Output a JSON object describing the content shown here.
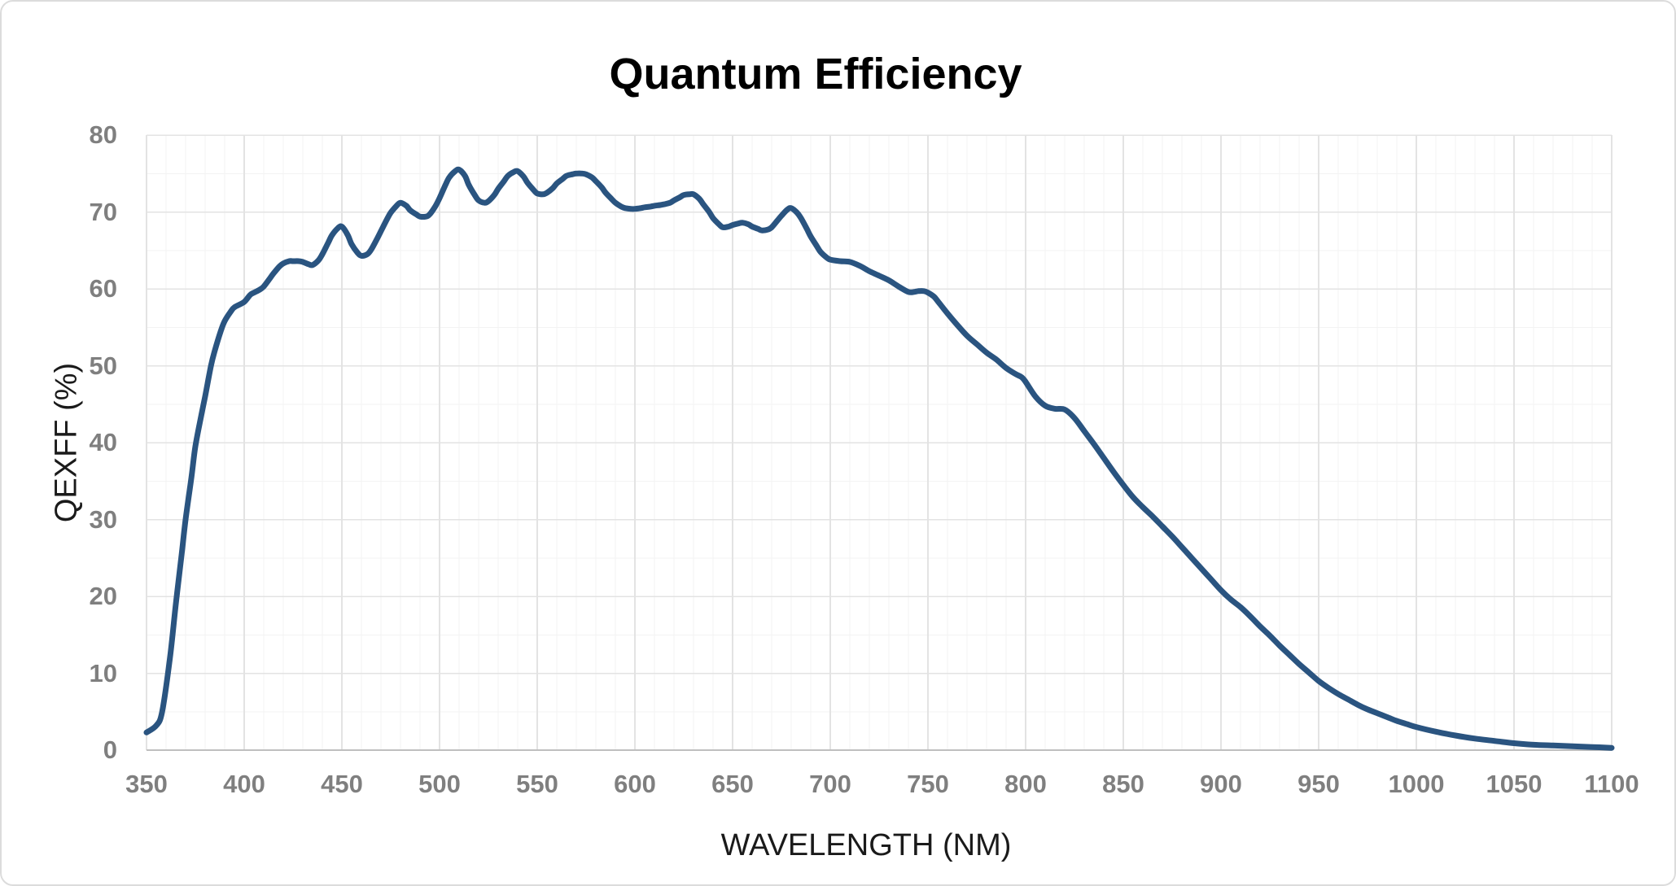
{
  "chart_data": {
    "type": "line",
    "title": "Quantum Efficiency",
    "xlabel": "WAVELENGTH (NM)",
    "ylabel": "QEXFF (%)",
    "xlim": [
      350,
      1100
    ],
    "ylim": [
      0,
      80
    ],
    "x_ticks": [
      350,
      400,
      450,
      500,
      550,
      600,
      650,
      700,
      750,
      800,
      850,
      900,
      950,
      1000,
      1050,
      1100
    ],
    "y_ticks": [
      0,
      10,
      20,
      30,
      40,
      50,
      60,
      70,
      80
    ],
    "x_minor_step": 10,
    "y_minor_step": 5,
    "grid": true,
    "legend": "none",
    "series": [
      {
        "name": "QExFF",
        "color": "#2a5480",
        "points": [
          [
            350,
            2.3
          ],
          [
            355,
            3.2
          ],
          [
            358,
            5
          ],
          [
            362,
            12
          ],
          [
            365,
            19
          ],
          [
            368,
            25.5
          ],
          [
            370,
            30
          ],
          [
            373,
            35.5
          ],
          [
            375,
            39.5
          ],
          [
            378,
            43.5
          ],
          [
            380,
            46
          ],
          [
            383,
            50
          ],
          [
            385,
            52
          ],
          [
            388,
            54.5
          ],
          [
            390,
            55.8
          ],
          [
            393,
            57
          ],
          [
            395,
            57.6
          ],
          [
            400,
            58.3
          ],
          [
            403,
            59.2
          ],
          [
            405,
            59.5
          ],
          [
            408,
            59.9
          ],
          [
            410,
            60.3
          ],
          [
            413,
            61.3
          ],
          [
            415,
            62
          ],
          [
            418,
            62.9
          ],
          [
            420,
            63.3
          ],
          [
            423,
            63.6
          ],
          [
            425,
            63.6
          ],
          [
            428,
            63.6
          ],
          [
            430,
            63.5
          ],
          [
            433,
            63.2
          ],
          [
            435,
            63.1
          ],
          [
            438,
            63.7
          ],
          [
            440,
            64.5
          ],
          [
            443,
            66
          ],
          [
            445,
            67
          ],
          [
            448,
            67.9
          ],
          [
            450,
            68.1
          ],
          [
            453,
            67
          ],
          [
            455,
            65.8
          ],
          [
            458,
            64.7
          ],
          [
            460,
            64.3
          ],
          [
            463,
            64.5
          ],
          [
            465,
            65.1
          ],
          [
            468,
            66.5
          ],
          [
            470,
            67.5
          ],
          [
            473,
            69
          ],
          [
            475,
            69.9
          ],
          [
            478,
            70.8
          ],
          [
            480,
            71.2
          ],
          [
            483,
            70.8
          ],
          [
            485,
            70.2
          ],
          [
            488,
            69.7
          ],
          [
            490,
            69.4
          ],
          [
            493,
            69.4
          ],
          [
            495,
            69.7
          ],
          [
            498,
            70.8
          ],
          [
            500,
            71.8
          ],
          [
            503,
            73.5
          ],
          [
            505,
            74.5
          ],
          [
            508,
            75.3
          ],
          [
            510,
            75.5
          ],
          [
            513,
            74.7
          ],
          [
            515,
            73.5
          ],
          [
            518,
            72.2
          ],
          [
            520,
            71.5
          ],
          [
            523,
            71.2
          ],
          [
            525,
            71.4
          ],
          [
            528,
            72.2
          ],
          [
            530,
            73
          ],
          [
            533,
            74
          ],
          [
            535,
            74.7
          ],
          [
            538,
            75.2
          ],
          [
            540,
            75.3
          ],
          [
            543,
            74.6
          ],
          [
            545,
            73.8
          ],
          [
            548,
            72.9
          ],
          [
            550,
            72.4
          ],
          [
            553,
            72.3
          ],
          [
            555,
            72.5
          ],
          [
            558,
            73.1
          ],
          [
            560,
            73.7
          ],
          [
            563,
            74.3
          ],
          [
            565,
            74.7
          ],
          [
            568,
            74.9
          ],
          [
            570,
            75
          ],
          [
            573,
            75
          ],
          [
            575,
            74.9
          ],
          [
            578,
            74.5
          ],
          [
            580,
            74
          ],
          [
            583,
            73.2
          ],
          [
            585,
            72.5
          ],
          [
            588,
            71.7
          ],
          [
            590,
            71.2
          ],
          [
            593,
            70.7
          ],
          [
            595,
            70.5
          ],
          [
            598,
            70.4
          ],
          [
            600,
            70.4
          ],
          [
            603,
            70.5
          ],
          [
            605,
            70.6
          ],
          [
            608,
            70.7
          ],
          [
            610,
            70.8
          ],
          [
            613,
            70.9
          ],
          [
            615,
            71
          ],
          [
            618,
            71.2
          ],
          [
            620,
            71.5
          ],
          [
            623,
            71.9
          ],
          [
            625,
            72.2
          ],
          [
            628,
            72.3
          ],
          [
            630,
            72.3
          ],
          [
            633,
            71.7
          ],
          [
            635,
            71
          ],
          [
            638,
            70
          ],
          [
            640,
            69.2
          ],
          [
            643,
            68.4
          ],
          [
            645,
            68
          ],
          [
            648,
            68.1
          ],
          [
            650,
            68.3
          ],
          [
            653,
            68.5
          ],
          [
            655,
            68.6
          ],
          [
            658,
            68.4
          ],
          [
            660,
            68.1
          ],
          [
            663,
            67.8
          ],
          [
            665,
            67.6
          ],
          [
            668,
            67.7
          ],
          [
            670,
            68
          ],
          [
            673,
            68.9
          ],
          [
            675,
            69.5
          ],
          [
            678,
            70.3
          ],
          [
            680,
            70.5
          ],
          [
            683,
            69.9
          ],
          [
            685,
            69.2
          ],
          [
            688,
            67.8
          ],
          [
            690,
            66.8
          ],
          [
            693,
            65.6
          ],
          [
            695,
            64.8
          ],
          [
            698,
            64.1
          ],
          [
            700,
            63.8
          ],
          [
            705,
            63.6
          ],
          [
            710,
            63.5
          ],
          [
            715,
            63
          ],
          [
            720,
            62.3
          ],
          [
            725,
            61.7
          ],
          [
            730,
            61.1
          ],
          [
            735,
            60.3
          ],
          [
            740,
            59.6
          ],
          [
            743,
            59.6
          ],
          [
            745,
            59.7
          ],
          [
            748,
            59.7
          ],
          [
            750,
            59.5
          ],
          [
            753,
            59
          ],
          [
            755,
            58.4
          ],
          [
            760,
            56.8
          ],
          [
            765,
            55.3
          ],
          [
            770,
            53.9
          ],
          [
            775,
            52.8
          ],
          [
            780,
            51.7
          ],
          [
            785,
            50.8
          ],
          [
            790,
            49.7
          ],
          [
            795,
            48.9
          ],
          [
            798,
            48.5
          ],
          [
            800,
            47.9
          ],
          [
            805,
            46
          ],
          [
            810,
            44.8
          ],
          [
            815,
            44.4
          ],
          [
            820,
            44.3
          ],
          [
            825,
            43.2
          ],
          [
            830,
            41.5
          ],
          [
            835,
            39.8
          ],
          [
            840,
            38
          ],
          [
            845,
            36.2
          ],
          [
            850,
            34.5
          ],
          [
            855,
            32.9
          ],
          [
            860,
            31.6
          ],
          [
            865,
            30.4
          ],
          [
            870,
            29.1
          ],
          [
            875,
            27.8
          ],
          [
            880,
            26.4
          ],
          [
            885,
            25
          ],
          [
            890,
            23.6
          ],
          [
            895,
            22.2
          ],
          [
            900,
            20.8
          ],
          [
            905,
            19.6
          ],
          [
            910,
            18.6
          ],
          [
            915,
            17.4
          ],
          [
            920,
            16.1
          ],
          [
            925,
            14.9
          ],
          [
            930,
            13.6
          ],
          [
            935,
            12.4
          ],
          [
            940,
            11.2
          ],
          [
            945,
            10.1
          ],
          [
            950,
            9
          ],
          [
            955,
            8.1
          ],
          [
            960,
            7.3
          ],
          [
            965,
            6.6
          ],
          [
            970,
            5.9
          ],
          [
            975,
            5.3
          ],
          [
            980,
            4.8
          ],
          [
            985,
            4.3
          ],
          [
            990,
            3.8
          ],
          [
            995,
            3.4
          ],
          [
            1000,
            3
          ],
          [
            1010,
            2.4
          ],
          [
            1020,
            1.9
          ],
          [
            1030,
            1.5
          ],
          [
            1040,
            1.2
          ],
          [
            1050,
            0.9
          ],
          [
            1060,
            0.7
          ],
          [
            1070,
            0.6
          ],
          [
            1080,
            0.5
          ],
          [
            1090,
            0.4
          ],
          [
            1100,
            0.3
          ]
        ]
      }
    ]
  },
  "colors": {
    "line": "#2a5480",
    "grid_minor": "#f3f3f3",
    "grid_major": "#e3e3e3",
    "axis_zero_line": "#bfbfbf",
    "tick_label": "#7f7f7f",
    "title": "#000000",
    "card_border": "#dcdcdc",
    "background": "#ffffff"
  }
}
